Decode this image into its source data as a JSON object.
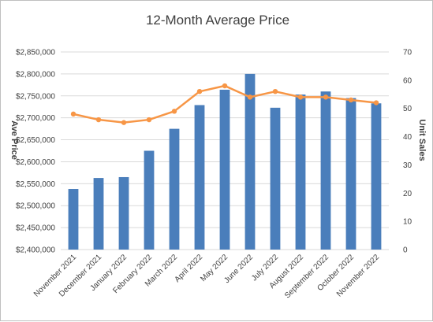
{
  "chart_data": {
    "type": "bar",
    "title": "12-Month Average Price",
    "categories": [
      "November 2021",
      "December 2021",
      "January 2022",
      "February 2022",
      "March 2022",
      "April 2022",
      "May 2022",
      "June 2022",
      "July 2022",
      "August 2022",
      "September 2022",
      "October 2022",
      "November 2022"
    ],
    "series": [
      {
        "type": "bar",
        "axis": "left",
        "color": "#4a7ebb",
        "values": [
          2538000,
          2563000,
          2565000,
          2625000,
          2675000,
          2729000,
          2764000,
          2800000,
          2723000,
          2753000,
          2760000,
          2745000,
          2733000
        ]
      },
      {
        "type": "line",
        "axis": "right",
        "color": "#f79646",
        "values": [
          48,
          46,
          45,
          46,
          49,
          56,
          58,
          54,
          56,
          54,
          54,
          53,
          52
        ]
      }
    ],
    "ylabel": "Ave Price",
    "y2label": "Unit Sales",
    "ylim": [
      2400000,
      2850000
    ],
    "yticks": [
      "$2,400,000",
      "$2,450,000",
      "$2,500,000",
      "$2,550,000",
      "$2,600,000",
      "$2,650,000",
      "$2,700,000",
      "$2,750,000",
      "$2,800,000",
      "$2,850,000"
    ],
    "y2lim": [
      0,
      70
    ],
    "y2ticks": [
      "0",
      "10",
      "20",
      "30",
      "40",
      "50",
      "60",
      "70"
    ],
    "grid": true,
    "legend": "none"
  }
}
